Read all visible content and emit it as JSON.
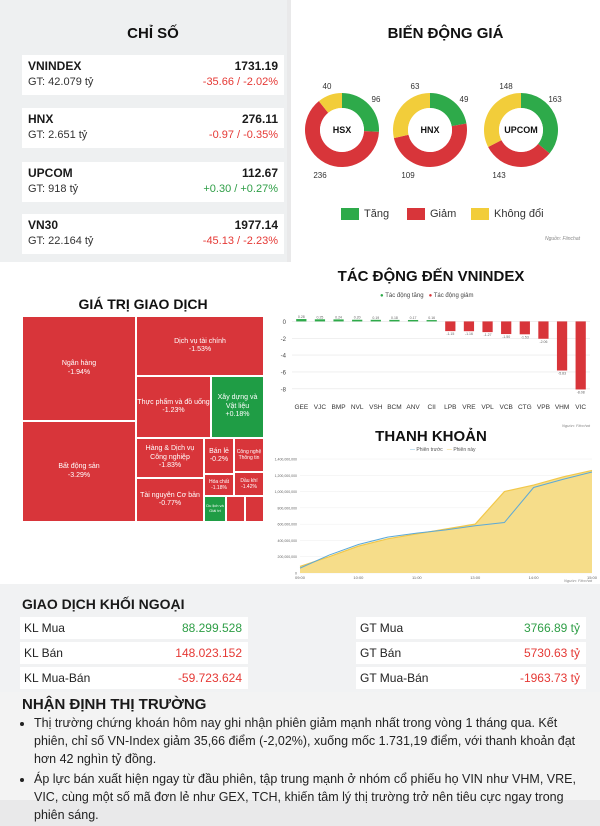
{
  "indices_section": {
    "title": "CHỈ SỐ",
    "items": [
      {
        "name": "VNINDEX",
        "gt": "GT: 42.079 tỷ",
        "value": "1731.19",
        "change": "-35.66 / -2.02%",
        "dir": "neg"
      },
      {
        "name": "HNX",
        "gt": "GT: 2.651 tỷ",
        "value": "276.11",
        "change": "-0.97 / -0.35%",
        "dir": "neg"
      },
      {
        "name": "UPCOM",
        "gt": "GT: 918 tỷ",
        "value": "112.67",
        "change": "+0.30 / +0.27%",
        "dir": "pos"
      },
      {
        "name": "VN30",
        "gt": "GT: 22.164 tỷ",
        "value": "1977.14",
        "change": "-45.13 / -2.23%",
        "dir": "neg"
      }
    ]
  },
  "price_movement": {
    "title": "BIẾN ĐỘNG GIÁ",
    "source": "Nguồn: Fiinchat",
    "colors": {
      "up": "#2eaa4a",
      "down": "#d8353a",
      "flat": "#f2cd3a"
    },
    "donuts": [
      {
        "label": "HSX",
        "up": 96,
        "down": 236,
        "flat": 40
      },
      {
        "label": "HNX",
        "up": 49,
        "down": 109,
        "flat": 63
      },
      {
        "label": "UPCOM",
        "up": 163,
        "down": 143,
        "flat": 148
      }
    ],
    "legend": {
      "up": "Tăng",
      "down": "Giảm",
      "flat": "Không đổi"
    }
  },
  "trading_value": {
    "title": "GIÁ TRỊ GIAO DỊCH",
    "cells": [
      {
        "name": "Ngân hàng",
        "pct": "-1.94%"
      },
      {
        "name": "Bất động sản",
        "pct": "-3.29%"
      },
      {
        "name": "Dịch vụ tài chính",
        "pct": "-1.53%"
      },
      {
        "name": "Thực phẩm và đồ uống",
        "pct": "-1.23%"
      },
      {
        "name": "Xây dựng và Vật liệu",
        "pct": "+0.18%"
      },
      {
        "name": "Hàng & Dịch vụ Công nghiệp",
        "pct": "-1.83%"
      },
      {
        "name": "Bán lẻ",
        "pct": "-0.2%"
      },
      {
        "name": "Công nghệ Thông tin",
        "pct": ""
      },
      {
        "name": "Hóa chất",
        "pct": "-1.18%"
      },
      {
        "name": "Dầu khí",
        "pct": "-1.42%"
      },
      {
        "name": "Tài nguyên Cơ bản",
        "pct": "-0.77%"
      },
      {
        "name": "Du lịch và Giải trí",
        "pct": ""
      }
    ]
  },
  "impact": {
    "title": "TÁC ĐỘNG ĐẾN VNINDEX",
    "legend_up": "Tác động tăng",
    "legend_down": "Tác động giảm",
    "source": "Nguồn: Fiinchat"
  },
  "liquidity": {
    "title": "THANH KHOẢN",
    "legend_a": "Phiên trước",
    "legend_b": "Phiên này",
    "y_ticks": [
      "1,400,000,000",
      "1,200,000,000",
      "1,000,000,000",
      "800,000,000",
      "600,000,000",
      "400,000,000",
      "200,000,000",
      "0"
    ],
    "x_ticks": [
      "09:00",
      "10:00",
      "11:00",
      "13:00",
      "14:00",
      "15:00"
    ],
    "source": "Nguồn: Fiinchat"
  },
  "chart_data": [
    {
      "type": "bar",
      "title": "TÁC ĐỘNG ĐẾN VNINDEX",
      "categories": [
        "GEE",
        "VJC",
        "BMP",
        "NVL",
        "VSH",
        "BCM",
        "ANV",
        "CII",
        "LPB",
        "VRE",
        "VPL",
        "VCB",
        "CTG",
        "VPB",
        "VHM",
        "VIC"
      ],
      "values": [
        0.28,
        0.25,
        0.24,
        0.2,
        0.19,
        0.18,
        0.17,
        0.16,
        -1.15,
        -1.16,
        -1.27,
        -1.5,
        -1.53,
        -2.06,
        -5.83,
        -8.08
      ],
      "value_labels": [
        "0.28",
        "0.25",
        "0.24",
        "0.20",
        "0.19",
        "0.18",
        "0.17",
        "0.16",
        "-1.15",
        "-1.16",
        "-1.27",
        "-1.50",
        "-1.53",
        "-2.06",
        "-5.83",
        "-8.08"
      ],
      "y_ticks": [
        0,
        -2,
        -4,
        -6,
        -8
      ],
      "ylim": [
        -8.5,
        1
      ],
      "colors": {
        "up": "#2eaa4a",
        "down": "#d8353a"
      }
    },
    {
      "type": "area",
      "title": "THANH KHOẢN",
      "x": [
        "09:00",
        "09:30",
        "10:00",
        "10:30",
        "11:00",
        "11:30",
        "13:00",
        "13:30",
        "14:00",
        "14:30",
        "15:00"
      ],
      "series": [
        {
          "name": "Phiên trước",
          "values": [
            80000000,
            200000000,
            330000000,
            420000000,
            480000000,
            540000000,
            600000000,
            1000000000,
            1080000000,
            1180000000,
            1260000000
          ]
        },
        {
          "name": "Phiên này",
          "values": [
            60000000,
            220000000,
            350000000,
            440000000,
            490000000,
            530000000,
            580000000,
            620000000,
            1050000000,
            1150000000,
            1240000000
          ]
        }
      ],
      "ylim": [
        0,
        1400000000
      ]
    }
  ],
  "foreign": {
    "title": "GIAO DỊCH KHỐI NGOẠI",
    "left": [
      {
        "label": "KL Mua",
        "value": "88.299.528",
        "dir": "pos"
      },
      {
        "label": "KL Bán",
        "value": "148.023.152",
        "dir": "neg"
      },
      {
        "label": "KL Mua-Bán",
        "value": "-59.723.624",
        "dir": "neg"
      }
    ],
    "right": [
      {
        "label": "GT Mua",
        "value": "3766.89 tỷ",
        "dir": "pos"
      },
      {
        "label": "GT Bán",
        "value": "5730.63 tỷ",
        "dir": "neg"
      },
      {
        "label": "GT Mua-Bán",
        "value": "-1963.73 tỷ",
        "dir": "neg"
      }
    ]
  },
  "analysis": {
    "title": "NHẬN ĐỊNH THỊ TRƯỜNG",
    "bullets": [
      "Thị trường chứng khoán hôm nay ghi nhận phiên giảm mạnh nhất trong vòng 1 tháng qua. Kết phiên, chỉ số VN-Index giảm 35,66 điểm (-2,02%), xuống mốc 1.731,19 điểm, với thanh khoản đạt hơn 42 nghìn tỷ đồng.",
      "Áp lực bán xuất hiện ngay từ đầu phiên, tập trung mạnh ở nhóm cổ phiếu họ VIN như VHM, VRE, VIC, cùng một số mã đơn lẻ như GEX, TCH, khiến tâm lý thị trường trở nên tiêu cực ngay trong phiên sáng."
    ]
  }
}
